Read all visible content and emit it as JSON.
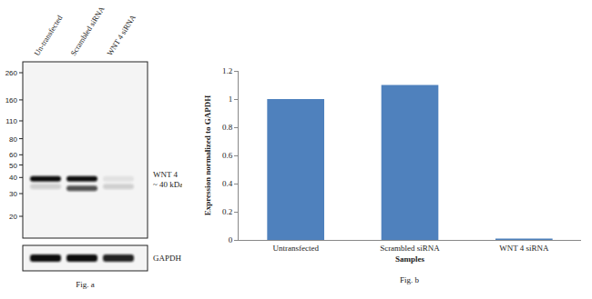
{
  "figure_a": {
    "lanes": [
      "Un-transfected",
      "Scrambled  siRNA",
      "WNT 4 siRNA"
    ],
    "markers_kda": [
      260,
      160,
      110,
      80,
      60,
      50,
      40,
      30,
      20
    ],
    "bands": [
      {
        "lane": 0,
        "kda": 39,
        "intensity": 1
      },
      {
        "lane": 1,
        "kda": 39,
        "intensity": 1
      },
      {
        "lane": 1,
        "kda": 33,
        "intensity": 0.7
      },
      {
        "lane": 0,
        "kda": 34,
        "intensity": 0.15
      },
      {
        "lane": 2,
        "kda": 34,
        "intensity": 0.15
      },
      {
        "lane": 2,
        "kda": 39,
        "intensity": 0.08
      }
    ],
    "band_label": [
      "WNT 4",
      "~ 40 kDa"
    ],
    "loading_control": {
      "label": "GAPDH",
      "intensities": [
        1,
        1,
        0.9
      ]
    },
    "caption": "Fig. a"
  },
  "chart_data": {
    "type": "bar",
    "categories": [
      "Untransfected",
      "Scrambled siRNA",
      "WNT 4 siRNA"
    ],
    "values": [
      1,
      1.1,
      0.01
    ],
    "color": "#4f81bd",
    "ylim": [
      0,
      1.2
    ],
    "yticks": [
      0,
      0.2,
      0.4,
      0.6,
      0.8,
      1,
      1.2
    ],
    "grid": false,
    "x_label": "Samples",
    "y_label": "Expression normalized to GAPDH",
    "caption": "Fig. b"
  }
}
